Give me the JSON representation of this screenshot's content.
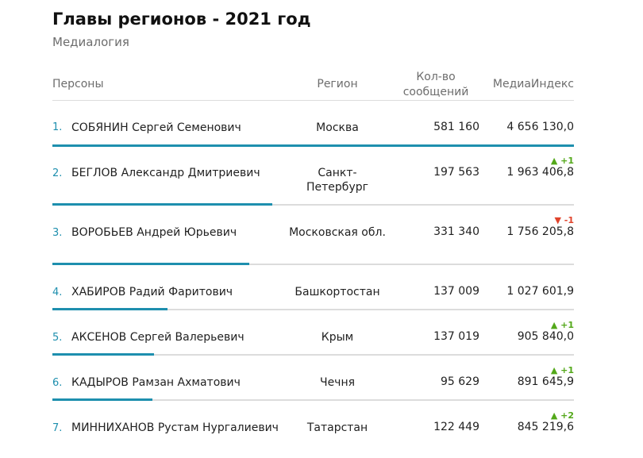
{
  "title": "Главы регионов - 2021 год",
  "subtitle": "Медиалогия",
  "columns": {
    "persons": "Персоны",
    "region": "Регион",
    "count_line1": "Кол-во",
    "count_line2": "сообщений",
    "index": "МедиаИндекс"
  },
  "colors": {
    "accent": "#1e8fae",
    "up": "#53a81a",
    "down": "#e0432b"
  },
  "rows": [
    {
      "rank": "1.",
      "name": "СОБЯНИН Сергей Семенович",
      "region": "Москва",
      "count": "581 160",
      "index": "4 656 130,0",
      "change": "",
      "change_dir": ""
    },
    {
      "rank": "2.",
      "name": "БЕГЛОВ Александр Дмитриевич",
      "region": "Санкт-Петербург",
      "count": "197 563",
      "index": "1 963 406,8",
      "change": "+1",
      "change_dir": "up"
    },
    {
      "rank": "3.",
      "name": "ВОРОБЬЕВ Андрей Юрьевич",
      "region": "Московская обл.",
      "count": "331 340",
      "index": "1 756 205,8",
      "change": "-1",
      "change_dir": "down"
    },
    {
      "rank": "4.",
      "name": "ХАБИРОВ Радий Фаритович",
      "region": "Башкортостан",
      "count": "137 009",
      "index": "1 027 601,9",
      "change": "",
      "change_dir": ""
    },
    {
      "rank": "5.",
      "name": "АКСЕНОВ Сергей Валерьевич",
      "region": "Крым",
      "count": "137 019",
      "index": "905 840,0",
      "change": "+1",
      "change_dir": "up"
    },
    {
      "rank": "6.",
      "name": "КАДЫРОВ Рамзан Ахматович",
      "region": "Чечня",
      "count": "95 629",
      "index": "891 645,9",
      "change": "+1",
      "change_dir": "up"
    },
    {
      "rank": "7.",
      "name": "МИННИХАНОВ Рустам Нургалиевич",
      "region": "Татарстан",
      "count": "122 449",
      "index": "845 219,6",
      "change": "+2",
      "change_dir": "up"
    }
  ]
}
